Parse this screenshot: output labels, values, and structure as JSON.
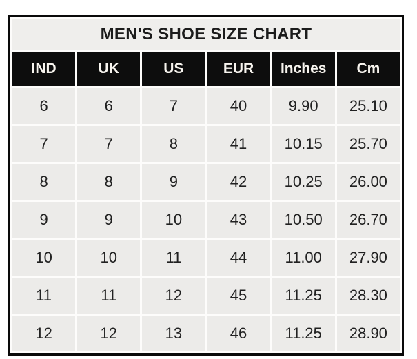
{
  "chart_data": {
    "type": "table",
    "title": "MEN'S SHOE SIZE CHART",
    "columns": [
      "IND",
      "UK",
      "US",
      "EUR",
      "Inches",
      "Cm"
    ],
    "rows": [
      [
        "6",
        "6",
        "7",
        "40",
        "9.90",
        "25.10"
      ],
      [
        "7",
        "7",
        "8",
        "41",
        "10.15",
        "25.70"
      ],
      [
        "8",
        "8",
        "9",
        "42",
        "10.25",
        "26.00"
      ],
      [
        "9",
        "9",
        "10",
        "43",
        "10.50",
        "26.70"
      ],
      [
        "10",
        "10",
        "11",
        "44",
        "11.00",
        "27.90"
      ],
      [
        "11",
        "11",
        "12",
        "45",
        "11.25",
        "28.30"
      ],
      [
        "12",
        "12",
        "13",
        "46",
        "11.25",
        "28.90"
      ]
    ],
    "layout": {
      "legend": "none",
      "grid": "white 3px separators between cells",
      "header_style": "black background, white bold text",
      "title_style": "light gray band, black bold text"
    },
    "colors": {
      "outer_border": "#0a0a0a",
      "header_background": "#0d0d0d",
      "header_text": "#f7f4ee",
      "title_background": "#efeeec",
      "title_text": "#1c1c1c",
      "cell_background": "#ecebe9",
      "cell_text": "#212121",
      "gridline": "#fdfcfb",
      "page_background": "#ffffff"
    }
  }
}
